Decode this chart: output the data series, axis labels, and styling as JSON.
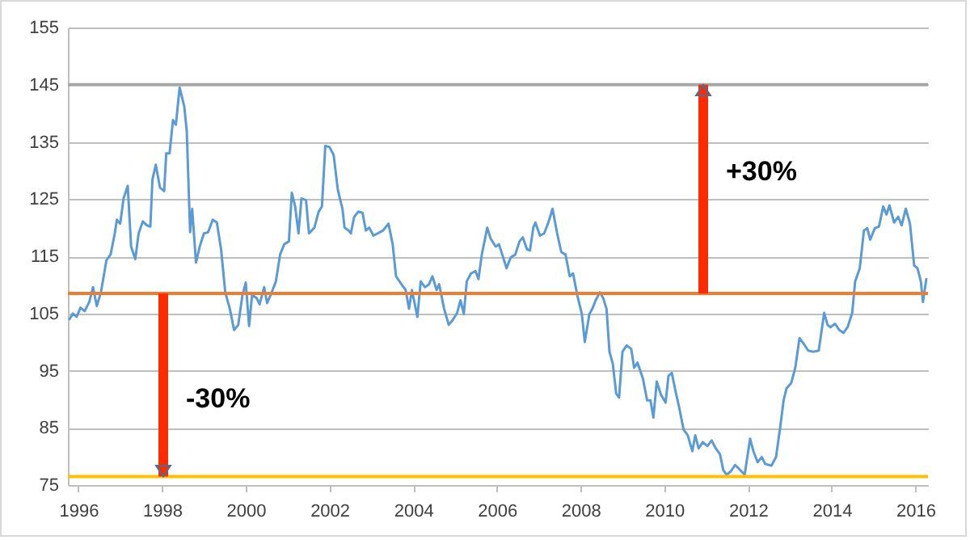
{
  "chart_data": {
    "type": "line",
    "x": [
      1995.79,
      1995.87,
      1995.96,
      1996.05,
      1996.15,
      1996.26,
      1996.35,
      1996.44,
      1996.54,
      1996.67,
      1996.77,
      1996.87,
      1996.92,
      1997.0,
      1997.08,
      1997.18,
      1997.26,
      1997.36,
      1997.44,
      1997.54,
      1997.64,
      1997.72,
      1997.77,
      1997.85,
      1997.95,
      1998.05,
      1998.1,
      1998.18,
      1998.26,
      1998.33,
      1998.42,
      1998.53,
      1998.59,
      1998.67,
      1998.72,
      1998.81,
      1998.9,
      1999.0,
      1999.1,
      1999.21,
      1999.31,
      1999.41,
      1999.51,
      1999.62,
      1999.72,
      1999.82,
      1999.92,
      2000.0,
      2000.08,
      2000.15,
      2000.26,
      2000.33,
      2000.44,
      2000.51,
      2000.62,
      2000.72,
      2000.82,
      2000.92,
      2001.03,
      2001.1,
      2001.18,
      2001.26,
      2001.33,
      2001.44,
      2001.51,
      2001.64,
      2001.74,
      2001.82,
      2001.9,
      2002.0,
      2002.1,
      2002.2,
      2002.31,
      2002.36,
      2002.46,
      2002.51,
      2002.59,
      2002.69,
      2002.79,
      2002.87,
      2002.95,
      2003.05,
      2003.15,
      2003.28,
      2003.41,
      2003.51,
      2003.59,
      2003.72,
      2003.82,
      2003.9,
      2003.97,
      2004.1,
      2004.18,
      2004.28,
      2004.38,
      2004.46,
      2004.56,
      2004.62,
      2004.74,
      2004.85,
      2004.95,
      2005.05,
      2005.13,
      2005.21,
      2005.28,
      2005.38,
      2005.49,
      2005.56,
      2005.64,
      2005.77,
      2005.85,
      2005.97,
      2006.05,
      2006.15,
      2006.23,
      2006.33,
      2006.44,
      2006.54,
      2006.62,
      2006.72,
      2006.79,
      2006.87,
      2006.92,
      2007.03,
      2007.13,
      2007.23,
      2007.33,
      2007.44,
      2007.54,
      2007.64,
      2007.74,
      2007.82,
      2007.92,
      2008.03,
      2008.1,
      2008.21,
      2008.28,
      2008.36,
      2008.46,
      2008.54,
      2008.62,
      2008.69,
      2008.77,
      2008.85,
      2008.92,
      2009.0,
      2009.1,
      2009.21,
      2009.28,
      2009.36,
      2009.49,
      2009.59,
      2009.67,
      2009.74,
      2009.82,
      2009.92,
      2010.03,
      2010.1,
      2010.18,
      2010.26,
      2010.36,
      2010.46,
      2010.56,
      2010.67,
      2010.74,
      2010.82,
      2010.92,
      2011.03,
      2011.13,
      2011.23,
      2011.33,
      2011.41,
      2011.49,
      2011.59,
      2011.69,
      2011.79,
      2011.92,
      2012.05,
      2012.13,
      2012.23,
      2012.33,
      2012.41,
      2012.56,
      2012.67,
      2012.77,
      2012.85,
      2012.92,
      2013.03,
      2013.13,
      2013.23,
      2013.33,
      2013.44,
      2013.56,
      2013.69,
      2013.82,
      2013.9,
      2013.97,
      2014.08,
      2014.18,
      2014.28,
      2014.38,
      2014.49,
      2014.56,
      2014.67,
      2014.77,
      2014.85,
      2014.92,
      2015.03,
      2015.13,
      2015.23,
      2015.31,
      2015.38,
      2015.49,
      2015.59,
      2015.67,
      2015.77,
      2015.87,
      2015.97,
      2016.05,
      2016.13,
      2016.18,
      2016.26
    ],
    "series": [
      {
        "color": "#5b9bd5",
        "values": [
          104,
          105,
          104.4,
          106,
          105.4,
          107,
          109.6,
          106.3,
          108.7,
          114.3,
          115.3,
          119,
          121.4,
          120.7,
          125.1,
          127.3,
          116.7,
          114.5,
          119,
          121.1,
          120.4,
          120.2,
          128.4,
          131,
          127,
          126.4,
          133,
          133,
          138.8,
          138,
          144.5,
          141.2,
          136.9,
          119.2,
          123.3,
          113.9,
          116.7,
          119,
          119.2,
          121.4,
          120.9,
          116.2,
          108.7,
          105.8,
          102.1,
          103,
          108.2,
          110.4,
          102.8,
          108.2,
          107.7,
          106.6,
          109.6,
          106.8,
          108.7,
          110.6,
          115.3,
          117.1,
          117.6,
          126.1,
          123.7,
          119,
          125.1,
          124.8,
          119,
          120,
          122.8,
          123.7,
          134.3,
          134.1,
          132.7,
          126.6,
          123.3,
          120,
          119.5,
          119,
          121.9,
          122.8,
          122.6,
          119.5,
          120,
          118.6,
          119,
          119.5,
          120.7,
          117.1,
          111.5,
          110.1,
          109.1,
          105.8,
          109.1,
          104.4,
          110.6,
          109.6,
          110.1,
          111.5,
          109.1,
          110.1,
          105.8,
          103,
          103.9,
          105.1,
          107.3,
          104.9,
          110.6,
          112,
          112.4,
          111,
          115.3,
          120,
          118.1,
          116.7,
          117.1,
          114.8,
          112.9,
          114.8,
          115.3,
          117.6,
          118.3,
          116.2,
          116,
          120,
          120.9,
          118.6,
          119,
          120.9,
          123.3,
          119,
          115.7,
          115.3,
          111.5,
          112,
          108.2,
          104.9,
          100,
          104.9,
          105.8,
          107.3,
          108.7,
          107.7,
          105.8,
          98.3,
          96.2,
          91,
          90.3,
          98.3,
          99.4,
          98.8,
          95.5,
          96.4,
          93.6,
          89.8,
          89.8,
          86.8,
          93.1,
          90.8,
          89.4,
          94.1,
          94.6,
          91.7,
          88.4,
          84.7,
          83.7,
          80.9,
          83.7,
          81.4,
          82.5,
          81.8,
          82.8,
          81.4,
          80.4,
          77.6,
          76.8,
          77.4,
          78.5,
          77.8,
          76.8,
          83.1,
          80.9,
          79,
          79.9,
          78.7,
          78.4,
          79.9,
          85.1,
          89.8,
          91.9,
          92.8,
          95.5,
          100.7,
          99.7,
          98.5,
          98.3,
          98.5,
          105.1,
          103,
          102.6,
          103.2,
          102.1,
          101.6,
          102.6,
          105.1,
          110.6,
          112.9,
          119.5,
          119.9,
          117.9,
          119.9,
          120.2,
          123.7,
          122.3,
          123.9,
          120.9,
          121.9,
          120.4,
          123.3,
          120.7,
          113.4,
          112.9,
          110.6,
          107,
          111
        ]
      }
    ],
    "xlim": [
      1995.75,
      2016.3
    ],
    "xticks": [
      1996,
      1998,
      2000,
      2002,
      2004,
      2006,
      2008,
      2010,
      2012,
      2014,
      2016
    ],
    "ylim": [
      75,
      155
    ],
    "yticks": [
      75,
      85,
      95,
      105,
      115,
      125,
      135,
      145,
      155
    ],
    "grid": "y",
    "line_style": "solid",
    "marker": "none",
    "ref_lines": [
      {
        "axis": "y",
        "value": 108.5,
        "color": "#ed7d31"
      },
      {
        "axis": "y",
        "value": 76.5,
        "color": "#ffc000"
      },
      {
        "axis": "y",
        "value": 145,
        "color": "#a6a6a6"
      }
    ],
    "annotations": [
      "-30%",
      "+30%"
    ]
  }
}
